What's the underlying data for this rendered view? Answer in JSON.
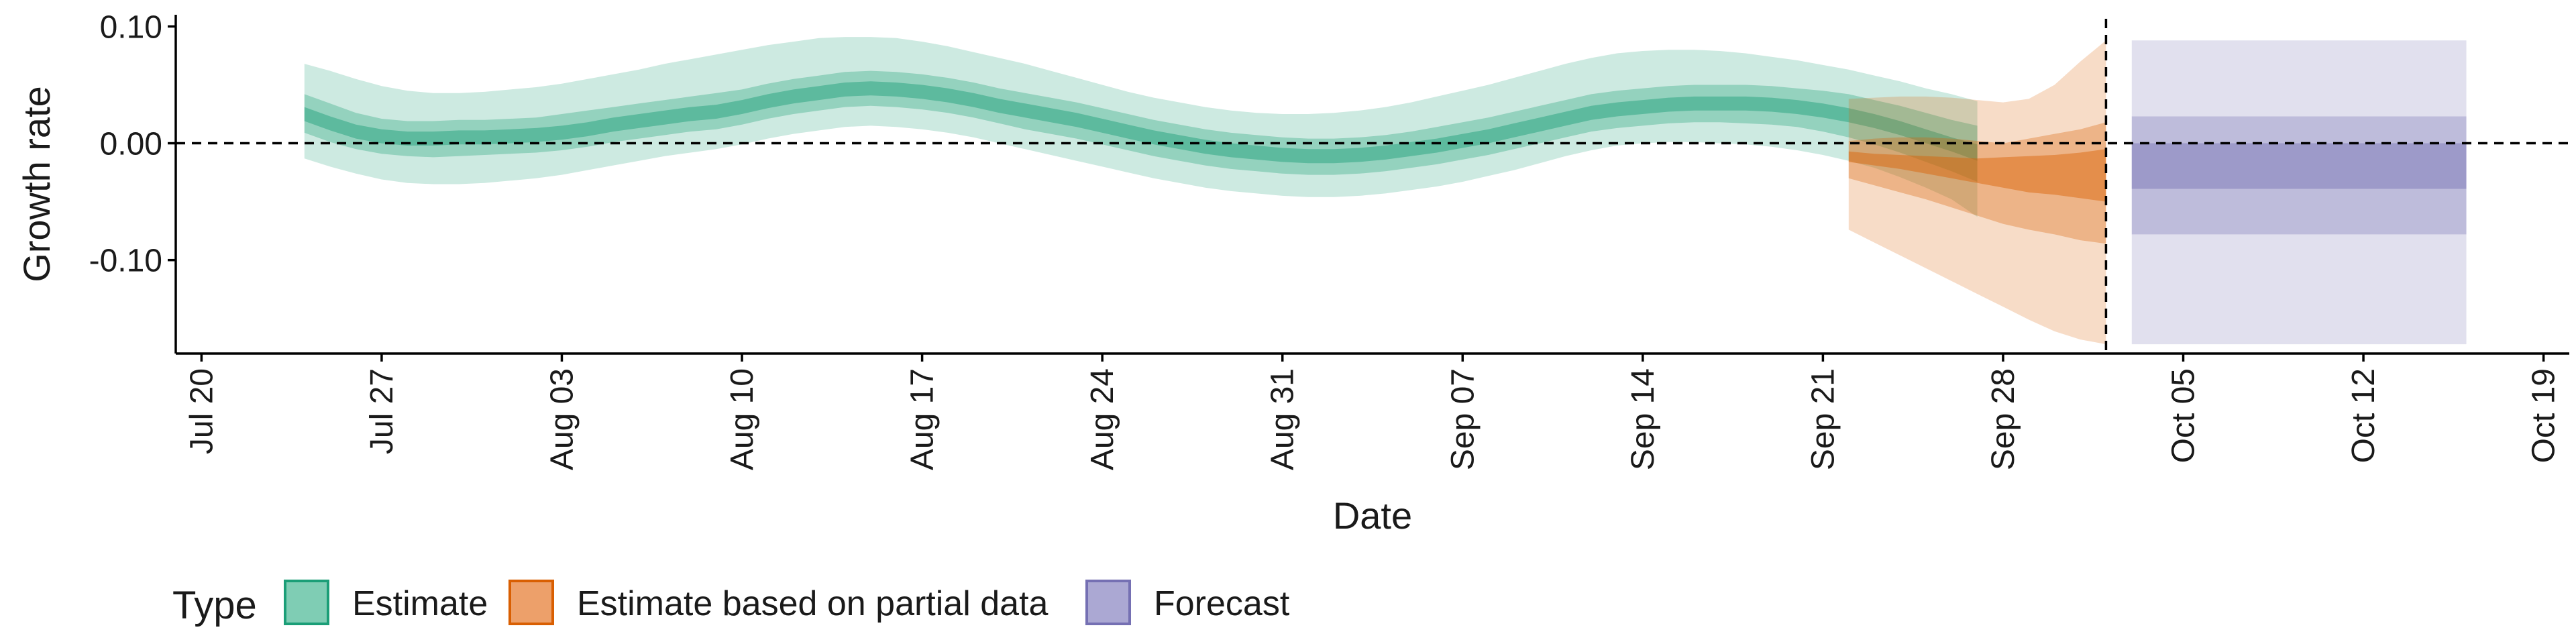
{
  "chart_data": {
    "type": "area",
    "title": "",
    "xlabel": "Date",
    "ylabel": "Growth rate",
    "x_range": [
      "2020-07-19",
      "2020-10-20"
    ],
    "ylim": [
      -0.18,
      0.11
    ],
    "y_ticks": [
      {
        "value": 0.1,
        "label": "0.10"
      },
      {
        "value": 0.0,
        "label": "0.00"
      },
      {
        "value": -0.1,
        "label": "-0.10"
      }
    ],
    "x_ticks": [
      {
        "date": "2020-07-20",
        "label": "Jul 20"
      },
      {
        "date": "2020-07-27",
        "label": "Jul 27"
      },
      {
        "date": "2020-08-03",
        "label": "Aug 03"
      },
      {
        "date": "2020-08-10",
        "label": "Aug 10"
      },
      {
        "date": "2020-08-17",
        "label": "Aug 17"
      },
      {
        "date": "2020-08-24",
        "label": "Aug 24"
      },
      {
        "date": "2020-08-31",
        "label": "Aug 31"
      },
      {
        "date": "2020-09-07",
        "label": "Sep 07"
      },
      {
        "date": "2020-09-14",
        "label": "Sep 14"
      },
      {
        "date": "2020-09-21",
        "label": "Sep 21"
      },
      {
        "date": "2020-09-28",
        "label": "Sep 28"
      },
      {
        "date": "2020-10-05",
        "label": "Oct 05"
      },
      {
        "date": "2020-10-12",
        "label": "Oct 12"
      },
      {
        "date": "2020-10-19",
        "label": "Oct 19"
      }
    ],
    "reference_lines": {
      "horizontal_y": 0.0,
      "vertical_date": "2020-10-02",
      "style": "dashed"
    },
    "legend": {
      "title": "Type",
      "position": "bottom-left",
      "entries": [
        {
          "label": "Estimate",
          "fill": "#7fcdb4",
          "stroke": "#1b9e77"
        },
        {
          "label": "Estimate based on partial data",
          "fill": "#eda06a",
          "stroke": "#d95f02"
        },
        {
          "label": "Forecast",
          "fill": "#aba8d3",
          "stroke": "#7570b3"
        }
      ]
    },
    "series": [
      {
        "name": "Estimate",
        "color": "#1b9e77",
        "start_date": "2020-07-24",
        "step_days": 1,
        "median": [
          0.025,
          0.017,
          0.01,
          0.006,
          0.004,
          0.004,
          0.005,
          0.005,
          0.006,
          0.007,
          0.009,
          0.012,
          0.016,
          0.019,
          0.022,
          0.025,
          0.027,
          0.031,
          0.036,
          0.04,
          0.043,
          0.046,
          0.047,
          0.046,
          0.044,
          0.041,
          0.037,
          0.032,
          0.028,
          0.024,
          0.02,
          0.015,
          0.01,
          0.005,
          0.001,
          -0.003,
          -0.006,
          -0.008,
          -0.01,
          -0.011,
          -0.011,
          -0.01,
          -0.008,
          -0.005,
          -0.002,
          0.002,
          0.006,
          0.011,
          0.016,
          0.021,
          0.026,
          0.029,
          0.031,
          0.033,
          0.034,
          0.034,
          0.034,
          0.033,
          0.031,
          0.028,
          0.024,
          0.019,
          0.013,
          0.006,
          -0.001,
          -0.008
        ],
        "bands": [
          {
            "level": "90%",
            "lower": [
              -0.013,
              -0.02,
              -0.026,
              -0.031,
              -0.034,
              -0.035,
              -0.035,
              -0.034,
              -0.032,
              -0.03,
              -0.027,
              -0.023,
              -0.019,
              -0.015,
              -0.011,
              -0.008,
              -0.005,
              -0.001,
              0.004,
              0.008,
              0.011,
              0.014,
              0.015,
              0.014,
              0.012,
              0.009,
              0.005,
              0.0,
              -0.005,
              -0.01,
              -0.015,
              -0.02,
              -0.025,
              -0.03,
              -0.034,
              -0.038,
              -0.041,
              -0.043,
              -0.045,
              -0.046,
              -0.046,
              -0.045,
              -0.043,
              -0.04,
              -0.037,
              -0.033,
              -0.028,
              -0.023,
              -0.017,
              -0.011,
              -0.006,
              -0.002,
              0.0,
              0.001,
              0.001,
              0.0,
              -0.001,
              -0.003,
              -0.006,
              -0.01,
              -0.015,
              -0.021,
              -0.029,
              -0.038,
              -0.048,
              -0.063
            ],
            "upper": [
              0.068,
              0.062,
              0.055,
              0.049,
              0.045,
              0.043,
              0.043,
              0.044,
              0.046,
              0.048,
              0.051,
              0.055,
              0.059,
              0.063,
              0.068,
              0.072,
              0.076,
              0.08,
              0.084,
              0.087,
              0.09,
              0.091,
              0.091,
              0.09,
              0.087,
              0.083,
              0.078,
              0.073,
              0.068,
              0.062,
              0.056,
              0.05,
              0.044,
              0.039,
              0.035,
              0.031,
              0.028,
              0.026,
              0.025,
              0.025,
              0.026,
              0.028,
              0.031,
              0.035,
              0.04,
              0.045,
              0.05,
              0.056,
              0.062,
              0.068,
              0.073,
              0.077,
              0.079,
              0.08,
              0.08,
              0.079,
              0.077,
              0.074,
              0.071,
              0.067,
              0.063,
              0.058,
              0.053,
              0.047,
              0.042,
              0.036
            ]
          },
          {
            "level": "50%",
            "lower": [
              0.009,
              0.001,
              -0.005,
              -0.009,
              -0.011,
              -0.012,
              -0.011,
              -0.01,
              -0.009,
              -0.008,
              -0.006,
              -0.003,
              0.001,
              0.004,
              0.007,
              0.01,
              0.012,
              0.016,
              0.021,
              0.025,
              0.028,
              0.031,
              0.032,
              0.031,
              0.029,
              0.026,
              0.022,
              0.017,
              0.012,
              0.008,
              0.004,
              -0.001,
              -0.006,
              -0.011,
              -0.015,
              -0.019,
              -0.022,
              -0.024,
              -0.026,
              -0.027,
              -0.027,
              -0.026,
              -0.024,
              -0.021,
              -0.018,
              -0.014,
              -0.01,
              -0.005,
              0.0,
              0.005,
              0.01,
              0.013,
              0.015,
              0.017,
              0.018,
              0.018,
              0.017,
              0.016,
              0.014,
              0.01,
              0.005,
              -0.001,
              -0.008,
              -0.016,
              -0.024,
              -0.033
            ],
            "upper": [
              0.042,
              0.034,
              0.026,
              0.021,
              0.019,
              0.019,
              0.02,
              0.02,
              0.021,
              0.022,
              0.025,
              0.028,
              0.031,
              0.034,
              0.037,
              0.04,
              0.043,
              0.046,
              0.051,
              0.055,
              0.058,
              0.061,
              0.062,
              0.061,
              0.059,
              0.056,
              0.052,
              0.047,
              0.043,
              0.039,
              0.035,
              0.03,
              0.025,
              0.02,
              0.016,
              0.012,
              0.009,
              0.007,
              0.005,
              0.004,
              0.004,
              0.005,
              0.007,
              0.01,
              0.014,
              0.018,
              0.022,
              0.027,
              0.032,
              0.037,
              0.042,
              0.045,
              0.047,
              0.049,
              0.05,
              0.05,
              0.05,
              0.049,
              0.047,
              0.045,
              0.042,
              0.037,
              0.032,
              0.026,
              0.02,
              0.015
            ]
          },
          {
            "level": "20%",
            "lower": [
              0.019,
              0.011,
              0.004,
              0.0,
              -0.002,
              -0.002,
              -0.001,
              -0.001,
              0.0,
              0.001,
              0.003,
              0.006,
              0.01,
              0.013,
              0.016,
              0.019,
              0.021,
              0.025,
              0.03,
              0.034,
              0.037,
              0.04,
              0.041,
              0.04,
              0.038,
              0.035,
              0.031,
              0.026,
              0.022,
              0.018,
              0.014,
              0.009,
              0.004,
              -0.001,
              -0.005,
              -0.009,
              -0.012,
              -0.014,
              -0.016,
              -0.017,
              -0.017,
              -0.016,
              -0.014,
              -0.011,
              -0.008,
              -0.004,
              0.0,
              0.005,
              0.01,
              0.015,
              0.02,
              0.023,
              0.025,
              0.027,
              0.028,
              0.028,
              0.028,
              0.027,
              0.025,
              0.022,
              0.018,
              0.013,
              0.007,
              0.0,
              -0.007,
              -0.015
            ],
            "upper": [
              0.031,
              0.023,
              0.016,
              0.012,
              0.01,
              0.01,
              0.011,
              0.011,
              0.012,
              0.013,
              0.015,
              0.018,
              0.022,
              0.025,
              0.028,
              0.031,
              0.033,
              0.037,
              0.042,
              0.046,
              0.049,
              0.052,
              0.053,
              0.052,
              0.05,
              0.047,
              0.043,
              0.038,
              0.034,
              0.03,
              0.026,
              0.021,
              0.016,
              0.011,
              0.007,
              0.003,
              0.0,
              -0.002,
              -0.004,
              -0.005,
              -0.005,
              -0.004,
              -0.002,
              0.001,
              0.004,
              0.008,
              0.012,
              0.017,
              0.022,
              0.027,
              0.032,
              0.035,
              0.037,
              0.039,
              0.04,
              0.04,
              0.04,
              0.039,
              0.037,
              0.034,
              0.03,
              0.025,
              0.019,
              0.012,
              0.005,
              -0.001
            ]
          }
        ]
      },
      {
        "name": "Estimate based on partial data",
        "color": "#d95f02",
        "start_date": "2020-09-22",
        "step_days": 1,
        "median": [
          -0.012,
          -0.014,
          -0.016,
          -0.018,
          -0.02,
          -0.022,
          -0.024,
          -0.026,
          -0.027,
          -0.028,
          -0.029
        ],
        "bands": [
          {
            "level": "90%",
            "lower": [
              -0.074,
              -0.085,
              -0.096,
              -0.107,
              -0.118,
              -0.129,
              -0.14,
              -0.151,
              -0.161,
              -0.168,
              -0.172
            ],
            "upper": [
              0.038,
              0.039,
              0.04,
              0.04,
              0.039,
              0.037,
              0.035,
              0.038,
              0.05,
              0.07,
              0.088
            ]
          },
          {
            "level": "50%",
            "lower": [
              -0.03,
              -0.036,
              -0.042,
              -0.048,
              -0.055,
              -0.062,
              -0.069,
              -0.074,
              -0.078,
              -0.083,
              -0.086
            ],
            "upper": [
              0.002,
              0.004,
              0.005,
              0.005,
              0.004,
              0.002,
              0.0,
              0.004,
              0.008,
              0.012,
              0.018
            ]
          },
          {
            "level": "20%",
            "lower": [
              -0.016,
              -0.019,
              -0.022,
              -0.026,
              -0.03,
              -0.034,
              -0.038,
              -0.042,
              -0.044,
              -0.047,
              -0.05
            ],
            "upper": [
              -0.007,
              -0.009,
              -0.01,
              -0.011,
              -0.012,
              -0.013,
              -0.012,
              -0.011,
              -0.01,
              -0.008,
              -0.005
            ]
          }
        ]
      },
      {
        "name": "Forecast",
        "color": "#7570b3",
        "start_date": "2020-10-03",
        "end_date": "2020-10-16",
        "bands": [
          {
            "level": "90%",
            "lower": -0.172,
            "upper": 0.088
          },
          {
            "level": "50%",
            "lower": -0.078,
            "upper": 0.023
          },
          {
            "level": "20%",
            "lower": -0.039,
            "upper": 0.0
          }
        ]
      }
    ]
  }
}
